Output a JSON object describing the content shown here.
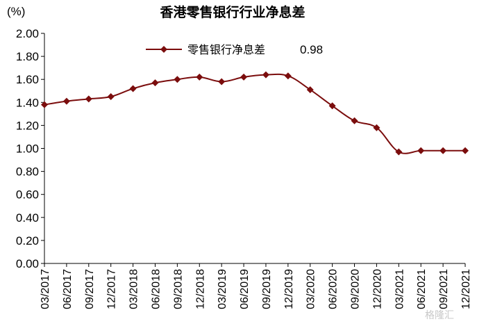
{
  "chart_data": {
    "type": "line",
    "title": "香港零售银行行业净息差",
    "ylabel": "(%)",
    "xlabel": "",
    "ylim": [
      0,
      2
    ],
    "yticks": [
      "0.00",
      "0.20",
      "0.40",
      "0.60",
      "0.80",
      "1.00",
      "1.20",
      "1.40",
      "1.60",
      "1.80",
      "2.00"
    ],
    "categories": [
      "03/2017",
      "06/2017",
      "09/2017",
      "12/2017",
      "03/2018",
      "06/2018",
      "09/2018",
      "12/2018",
      "03/2019",
      "06/2019",
      "09/2019",
      "12/2019",
      "03/2020",
      "06/2020",
      "09/2020",
      "12/2020",
      "03/2021",
      "06/2021",
      "09/2021",
      "12/2021"
    ],
    "series": [
      {
        "name": "零售银行净息差",
        "color": "#7b0d0d",
        "values": [
          1.38,
          1.41,
          1.43,
          1.45,
          1.52,
          1.57,
          1.6,
          1.62,
          1.58,
          1.62,
          1.64,
          1.63,
          1.51,
          1.37,
          1.24,
          1.18,
          0.97,
          0.98,
          0.98,
          0.98
        ]
      }
    ],
    "legend": {
      "position": "top",
      "value_label": "0.98"
    },
    "grid": false
  },
  "watermark": "格隆汇"
}
